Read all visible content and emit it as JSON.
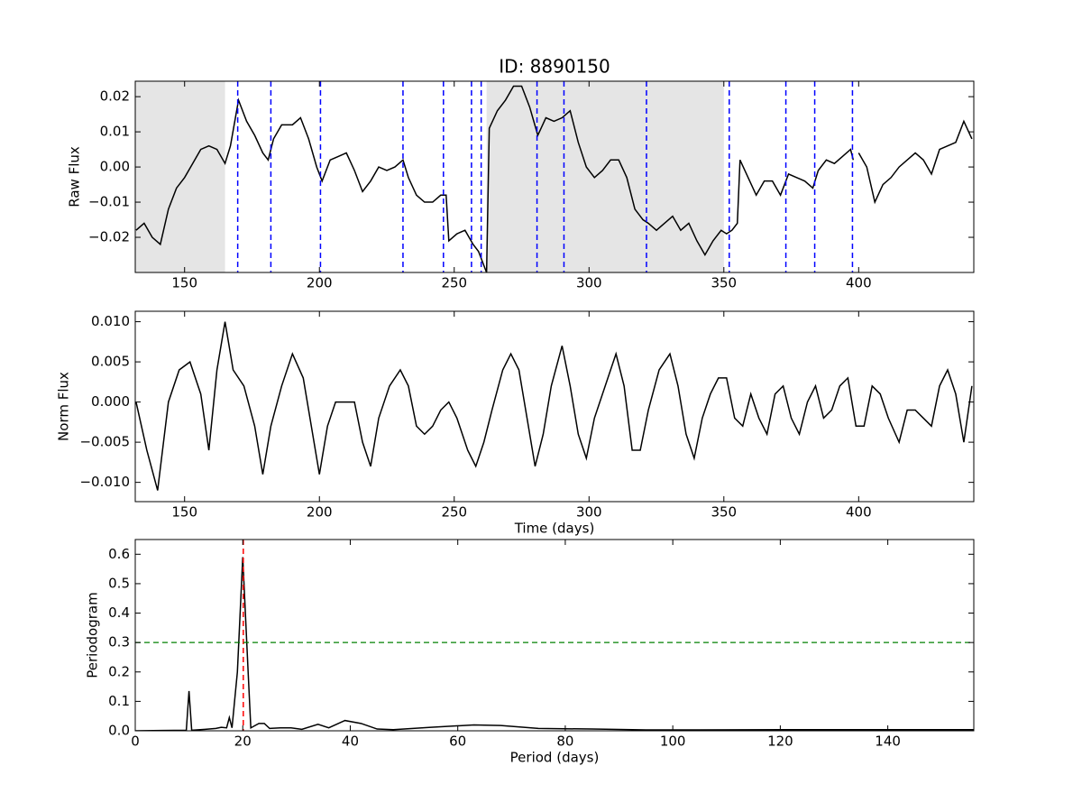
{
  "chart_data": [
    {
      "type": "line",
      "title": "ID: 8890150",
      "ylabel": "Raw Flux",
      "color": "#000000",
      "xlim": [
        131.7,
        442.7
      ],
      "ylim": [
        -0.03,
        0.0244
      ],
      "xticks": [
        150,
        200,
        250,
        300,
        350,
        400
      ],
      "yticks": [
        {
          "value": -0.02,
          "label": "−0.02"
        },
        {
          "value": -0.01,
          "label": "−0.01"
        },
        {
          "value": 0,
          "label": "0.00"
        },
        0.01,
        0.02
      ],
      "shaded_spans": [
        [
          131.7,
          165
        ],
        [
          262,
          350
        ]
      ],
      "span_color": "#e5e5e5",
      "vlines": [
        169.7,
        182.0,
        200.4,
        231.0,
        246.0,
        256.4,
        260.0,
        280.7,
        290.7,
        321.3,
        352.0,
        373.0,
        383.7,
        397.7
      ],
      "vline_color": "#0000ff",
      "x": [
        132,
        135,
        138,
        141,
        144,
        147,
        150,
        153,
        156,
        159,
        162,
        165,
        167,
        170,
        173,
        176,
        179,
        181,
        183,
        186,
        190,
        193,
        196,
        199,
        201,
        204,
        207,
        210,
        213,
        216,
        219,
        222,
        225,
        228,
        231,
        233,
        236,
        239,
        242,
        245,
        247,
        248,
        251,
        254,
        257,
        259,
        261,
        262,
        263,
        266,
        269,
        272,
        275,
        278,
        281,
        284,
        287,
        290,
        293,
        296,
        299,
        302,
        305,
        308,
        311,
        314,
        317,
        320,
        322,
        325,
        328,
        331,
        334,
        337,
        340,
        343,
        346,
        349,
        351,
        353,
        355,
        356,
        359,
        362,
        365,
        368,
        371,
        374,
        377,
        380,
        383,
        385,
        388,
        391,
        394,
        397,
        398,
        399.5,
        400,
        403,
        406,
        409,
        412,
        415,
        418,
        421,
        424,
        427,
        430,
        433,
        436,
        439,
        442
      ],
      "values": [
        -0.018,
        -0.016,
        -0.02,
        -0.022,
        -0.012,
        -0.006,
        -0.003,
        0.001,
        0.005,
        0.006,
        0.005,
        0.001,
        0.006,
        0.019,
        0.013,
        0.009,
        0.004,
        0.002,
        0.008,
        0.012,
        0.012,
        0.014,
        0.008,
        0.0,
        -0.004,
        0.002,
        0.003,
        0.004,
        -0.001,
        -0.007,
        -0.004,
        0.0,
        -0.001,
        0.0,
        0.002,
        -0.003,
        -0.008,
        -0.01,
        -0.01,
        -0.008,
        -0.008,
        -0.021,
        -0.019,
        -0.018,
        -0.022,
        -0.024,
        -0.028,
        -0.03,
        0.011,
        0.016,
        0.019,
        0.023,
        0.023,
        0.017,
        0.009,
        0.014,
        0.013,
        0.014,
        0.016,
        0.007,
        0.0,
        -0.003,
        -0.001,
        0.002,
        0.002,
        -0.003,
        -0.012,
        -0.015,
        -0.016,
        -0.018,
        -0.016,
        -0.014,
        -0.018,
        -0.016,
        -0.021,
        -0.025,
        -0.021,
        -0.018,
        -0.019,
        -0.018,
        -0.016,
        0.002,
        -0.003,
        -0.008,
        -0.004,
        -0.004,
        -0.008,
        -0.002,
        -0.003,
        -0.004,
        -0.006,
        -0.001,
        0.002,
        0.001,
        0.003,
        0.005,
        0.002,
        null,
        0.004,
        0.0,
        -0.01,
        -0.005,
        -0.003,
        0.0,
        0.002,
        0.004,
        0.002,
        -0.002,
        0.005,
        0.006,
        0.007,
        0.013,
        0.008
      ]
    },
    {
      "type": "line",
      "xlabel": "Time (days)",
      "ylabel": "Norm Flux",
      "color": "#000000",
      "xlim": [
        131.7,
        442.7
      ],
      "ylim": [
        -0.0124,
        0.0113
      ],
      "xticks": [
        150,
        200,
        250,
        300,
        350,
        400
      ],
      "yticks": [
        {
          "value": -0.01,
          "label": "−0.010"
        },
        {
          "value": -0.005,
          "label": "−0.005"
        },
        {
          "value": 0,
          "label": "0.000"
        },
        {
          "value": 0.005,
          "label": "0.005"
        },
        {
          "value": 0.01,
          "label": "0.010"
        }
      ],
      "x": [
        132,
        136,
        140,
        144,
        148,
        152,
        156,
        159,
        162,
        165,
        168,
        172,
        176,
        179,
        182,
        186,
        190,
        194,
        197,
        200,
        203,
        206,
        210,
        213,
        216,
        219,
        222,
        226,
        230,
        233,
        236,
        239,
        242,
        245,
        248,
        251,
        255,
        258,
        261,
        264,
        268,
        271,
        274,
        277,
        280,
        283,
        286,
        290,
        293,
        296,
        299,
        302,
        306,
        310,
        313,
        316,
        319,
        322,
        326,
        330,
        333,
        336,
        339,
        342,
        345,
        348,
        351,
        354,
        357,
        360,
        363,
        366,
        369,
        372,
        375,
        378,
        381,
        384,
        387,
        390,
        393,
        396,
        399,
        402,
        405,
        408,
        411,
        415,
        418,
        421,
        424,
        427,
        430,
        433,
        436,
        439,
        442
      ],
      "values": [
        0.0,
        -0.006,
        -0.011,
        0.0,
        0.004,
        0.005,
        0.001,
        -0.006,
        0.004,
        0.01,
        0.004,
        0.002,
        -0.003,
        -0.009,
        -0.003,
        0.002,
        0.006,
        0.003,
        -0.003,
        -0.009,
        -0.003,
        0.0,
        0.0,
        0.0,
        -0.005,
        -0.008,
        -0.002,
        0.002,
        0.004,
        0.002,
        -0.003,
        -0.004,
        -0.003,
        -0.001,
        0.0,
        -0.002,
        -0.006,
        -0.008,
        -0.005,
        -0.001,
        0.004,
        0.006,
        0.004,
        -0.002,
        -0.008,
        -0.004,
        0.002,
        0.007,
        0.002,
        -0.004,
        -0.007,
        -0.002,
        0.002,
        0.006,
        0.002,
        -0.006,
        -0.006,
        -0.001,
        0.004,
        0.006,
        0.002,
        -0.004,
        -0.007,
        -0.002,
        0.001,
        0.003,
        0.003,
        -0.002,
        -0.003,
        0.001,
        -0.002,
        -0.004,
        0.001,
        0.002,
        -0.002,
        -0.004,
        0.0,
        0.002,
        -0.002,
        -0.001,
        0.002,
        0.003,
        -0.003,
        -0.003,
        0.002,
        0.001,
        -0.002,
        -0.005,
        -0.001,
        -0.001,
        -0.002,
        -0.003,
        0.002,
        0.004,
        0.001,
        -0.005,
        0.002
      ]
    },
    {
      "type": "line",
      "xlabel": "Period (days)",
      "ylabel": "Periodogram",
      "color": "#000000",
      "xlim": [
        0,
        156
      ],
      "ylim": [
        0,
        0.65
      ],
      "xticks": [
        0,
        20,
        40,
        60,
        80,
        100,
        120,
        140
      ],
      "yticks": [
        {
          "value": 0,
          "label": "0.0"
        },
        0.1,
        0.2,
        0.3,
        0.4,
        0.5,
        0.6
      ],
      "vlines": [
        20.1
      ],
      "vline_color": "#ff0000",
      "hlines": [
        0.3
      ],
      "hline_color": "#008000",
      "x": [
        0,
        5,
        9.5,
        10,
        10.5,
        13,
        15,
        16,
        17,
        17.5,
        18,
        19,
        20,
        21,
        21.5,
        22,
        23,
        24,
        25,
        27,
        29,
        31,
        34,
        36,
        39,
        42,
        45,
        48,
        55,
        63,
        68,
        75,
        85,
        95,
        105,
        120,
        156
      ],
      "values": [
        0,
        0.001,
        0.002,
        0.135,
        0.002,
        0.005,
        0.008,
        0.012,
        0.01,
        0.045,
        0.01,
        0.2,
        0.59,
        0.2,
        0.01,
        0.015,
        0.025,
        0.025,
        0.008,
        0.01,
        0.01,
        0.005,
        0.022,
        0.01,
        0.035,
        0.025,
        0.006,
        0.004,
        0.012,
        0.02,
        0.018,
        0.008,
        0.006,
        0.003,
        0.003,
        0.004,
        0.004
      ]
    }
  ]
}
